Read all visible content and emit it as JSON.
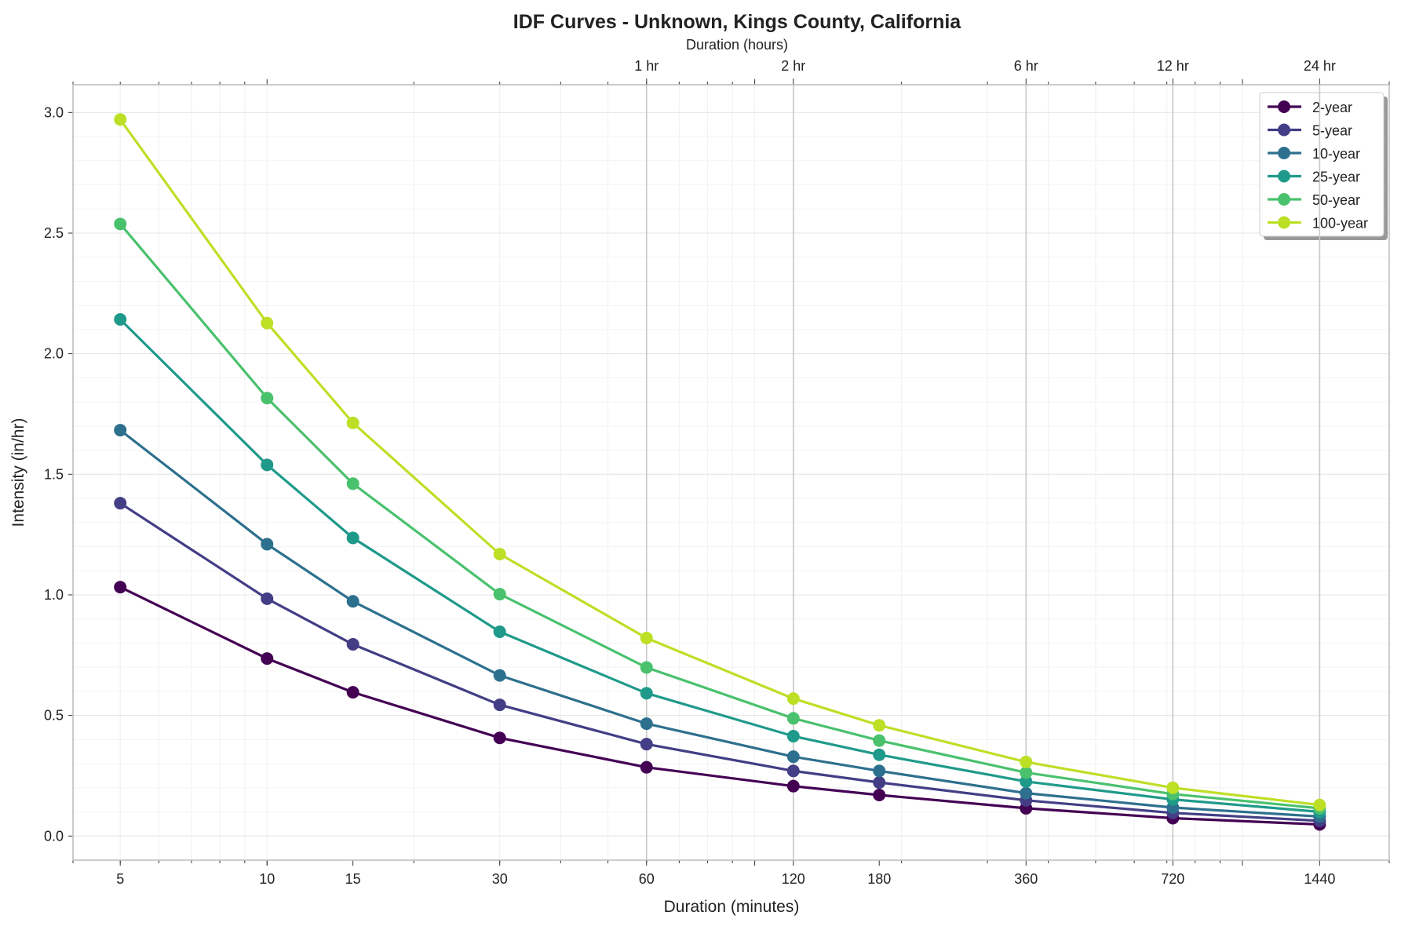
{
  "chart_data": {
    "type": "line",
    "title": "IDF Curves - Unknown, Kings County, California",
    "xlabel": "Duration (minutes)",
    "ylabel": "Intensity (in/hr)",
    "secondary_xlabel": "Duration (hours)",
    "xscale": "log",
    "xlim": [
      4,
      2000
    ],
    "ylim": [
      -0.1,
      3.115
    ],
    "x": [
      5,
      10,
      15,
      30,
      60,
      120,
      180,
      360,
      720,
      1440
    ],
    "x_tick_labels": [
      "5",
      "10",
      "15",
      "30",
      "60",
      "120",
      "180",
      "360",
      "720",
      "1440"
    ],
    "y_ticks": [
      0.0,
      0.5,
      1.0,
      1.5,
      2.0,
      2.5,
      3.0
    ],
    "y_tick_labels": [
      "0.0",
      "0.5",
      "1.0",
      "1.5",
      "2.0",
      "2.5",
      "3.0"
    ],
    "top_ticks": [
      {
        "value": 60,
        "label": "1 hr"
      },
      {
        "value": 120,
        "label": "2 hr"
      },
      {
        "value": 360,
        "label": "6 hr"
      },
      {
        "value": 720,
        "label": "12 hr"
      },
      {
        "value": 1440,
        "label": "24 hr"
      }
    ],
    "grid": true,
    "legend_position": "top-right",
    "series": [
      {
        "name": "2-year",
        "color": "#440154",
        "values": [
          1.032,
          0.736,
          0.596,
          0.407,
          0.285,
          0.207,
          0.17,
          0.115,
          0.074,
          0.048
        ]
      },
      {
        "name": "5-year",
        "color": "#433e85",
        "values": [
          1.38,
          0.984,
          0.795,
          0.544,
          0.381,
          0.27,
          0.222,
          0.148,
          0.096,
          0.063
        ]
      },
      {
        "name": "10-year",
        "color": "#2d708e",
        "values": [
          1.683,
          1.21,
          0.973,
          0.666,
          0.466,
          0.329,
          0.27,
          0.178,
          0.118,
          0.081
        ]
      },
      {
        "name": "25-year",
        "color": "#1f9a8a",
        "values": [
          2.142,
          1.539,
          1.236,
          0.847,
          0.592,
          0.414,
          0.337,
          0.226,
          0.152,
          0.1
        ]
      },
      {
        "name": "50-year",
        "color": "#4ac16d",
        "values": [
          2.538,
          1.816,
          1.461,
          1.003,
          0.699,
          0.488,
          0.396,
          0.263,
          0.174,
          0.115
        ]
      },
      {
        "name": "100-year",
        "color": "#bddf26",
        "values": [
          2.971,
          2.127,
          1.713,
          1.169,
          0.821,
          0.57,
          0.459,
          0.307,
          0.2,
          0.129
        ]
      }
    ]
  }
}
